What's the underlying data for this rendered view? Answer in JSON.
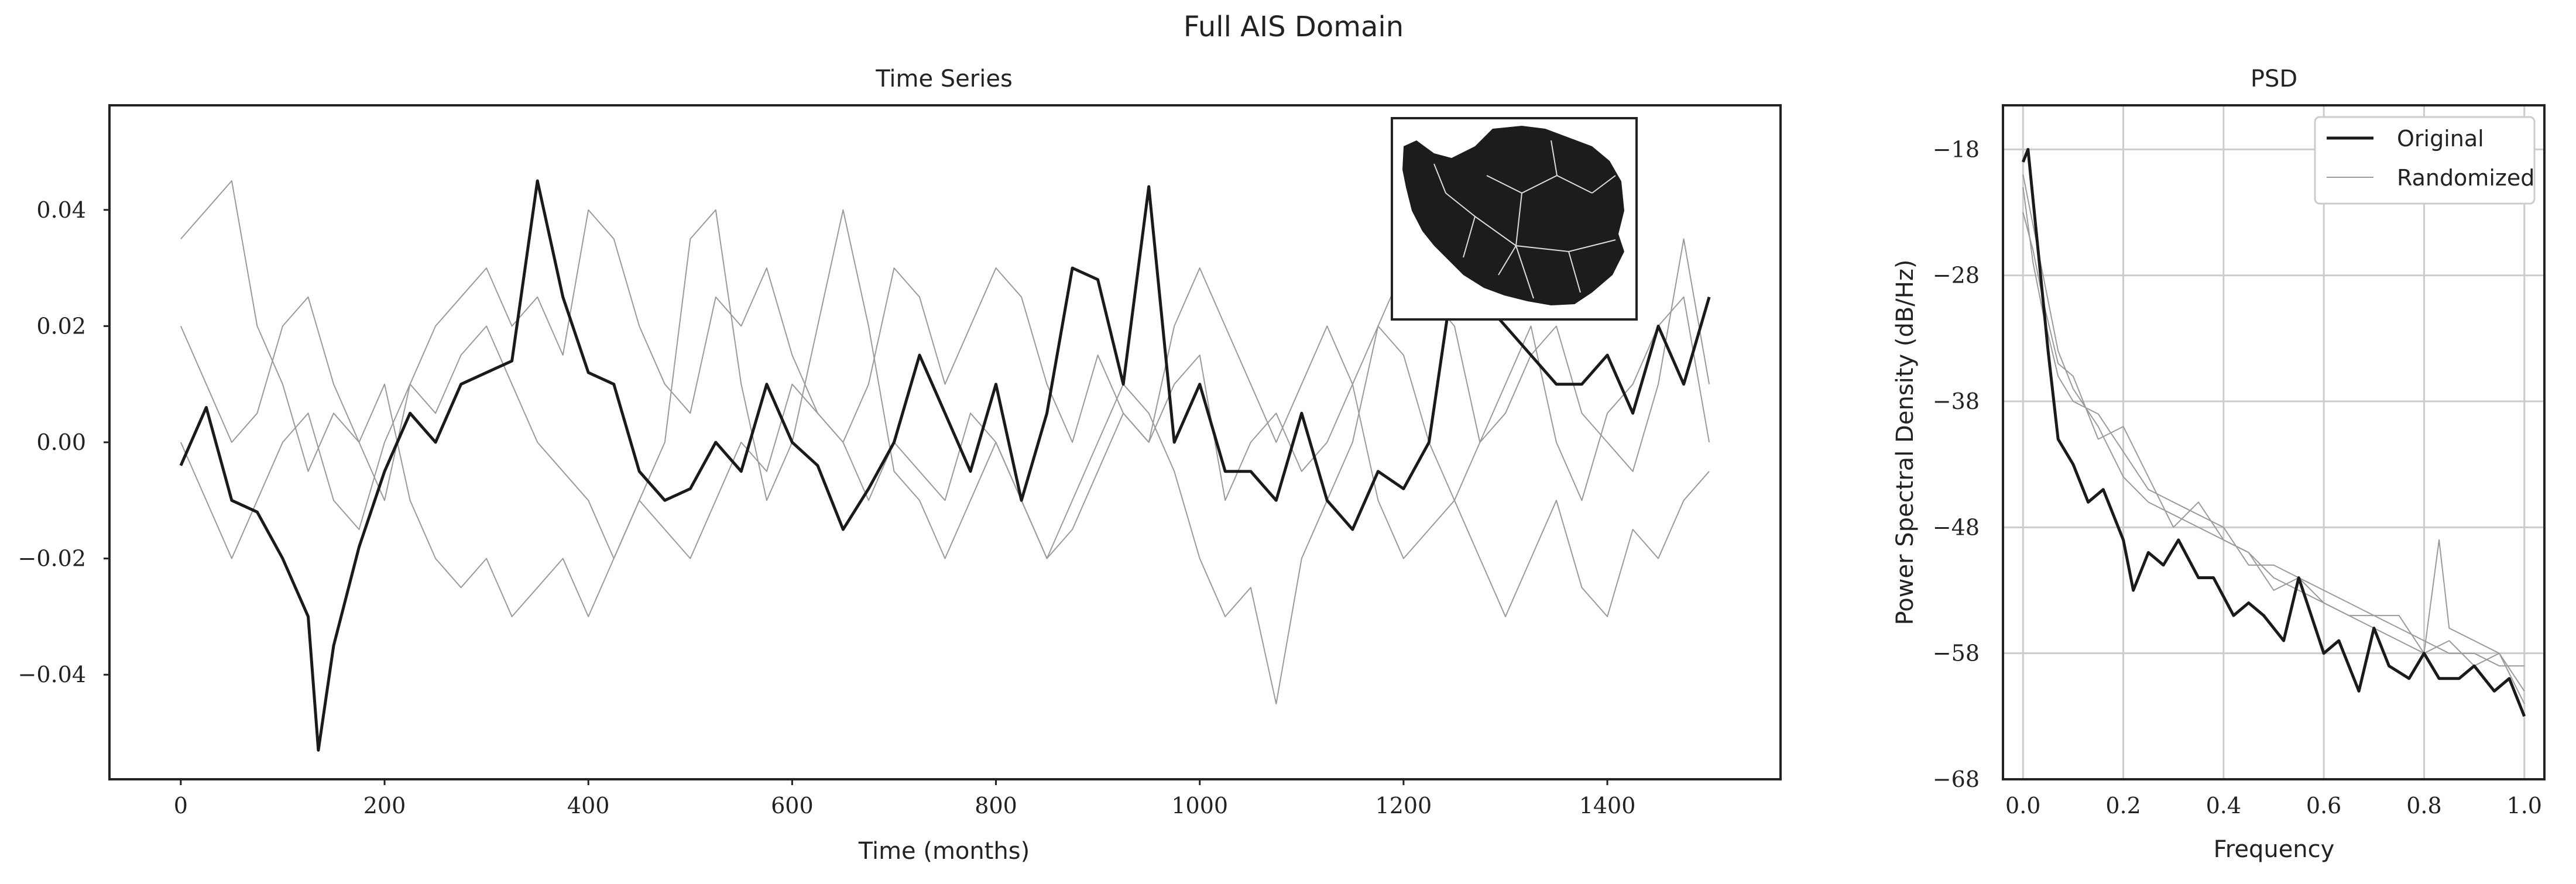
{
  "figure": {
    "suptitle": "Full AIS Domain"
  },
  "chart_data": [
    {
      "type": "line",
      "title": "Time Series",
      "xlabel": "Time (months)",
      "ylabel": "",
      "xlim": [
        -70,
        1570
      ],
      "ylim": [
        -0.058,
        0.058
      ],
      "x_ticks": [
        0,
        200,
        400,
        600,
        800,
        1000,
        1200,
        1400
      ],
      "x_tick_labels": [
        "0",
        "200",
        "400",
        "600",
        "800",
        "1000",
        "1200",
        "1400"
      ],
      "y_ticks": [
        -0.04,
        -0.02,
        0.0,
        0.02,
        0.04
      ],
      "y_tick_labels": [
        "−0.04",
        "−0.02",
        "0.00",
        "0.02",
        "0.04"
      ],
      "grid": false,
      "inset": "antarctica-map",
      "series": [
        {
          "style": "original",
          "x": [
            0,
            25,
            50,
            75,
            100,
            125,
            135,
            150,
            175,
            200,
            225,
            250,
            275,
            300,
            325,
            350,
            375,
            400,
            425,
            450,
            475,
            500,
            525,
            550,
            575,
            600,
            625,
            650,
            675,
            700,
            725,
            750,
            775,
            800,
            825,
            850,
            875,
            900,
            925,
            950,
            975,
            1000,
            1025,
            1050,
            1075,
            1100,
            1125,
            1150,
            1175,
            1200,
            1225,
            1250,
            1275,
            1300,
            1325,
            1350,
            1375,
            1400,
            1425,
            1450,
            1475,
            1500
          ],
          "y": [
            -0.004,
            0.006,
            -0.01,
            -0.012,
            -0.02,
            -0.03,
            -0.053,
            -0.035,
            -0.018,
            -0.005,
            0.005,
            0.0,
            0.01,
            0.012,
            0.014,
            0.045,
            0.025,
            0.012,
            0.01,
            -0.005,
            -0.01,
            -0.008,
            0.0,
            -0.005,
            0.01,
            0.0,
            -0.004,
            -0.015,
            -0.008,
            0.0,
            0.015,
            0.005,
            -0.005,
            0.01,
            -0.01,
            0.005,
            0.03,
            0.028,
            0.01,
            0.044,
            0.0,
            0.01,
            -0.005,
            -0.005,
            -0.01,
            0.005,
            -0.01,
            -0.015,
            -0.005,
            -0.008,
            0.0,
            0.03,
            0.025,
            0.02,
            0.015,
            0.01,
            0.01,
            0.015,
            0.005,
            0.02,
            0.01,
            0.025
          ]
        },
        {
          "style": "randomized",
          "x": [
            0,
            25,
            50,
            75,
            100,
            125,
            150,
            175,
            200,
            225,
            250,
            275,
            300,
            325,
            350,
            375,
            400,
            425,
            450,
            475,
            500,
            525,
            550,
            575,
            600,
            625,
            650,
            675,
            700,
            725,
            750,
            775,
            800,
            825,
            850,
            875,
            900,
            925,
            950,
            975,
            1000,
            1025,
            1050,
            1075,
            1100,
            1125,
            1150,
            1175,
            1200,
            1225,
            1250,
            1275,
            1300,
            1325,
            1350,
            1375,
            1400,
            1425,
            1450,
            1475,
            1500
          ],
          "y": [
            0.035,
            0.04,
            0.045,
            0.02,
            0.01,
            -0.005,
            0.005,
            0.0,
            0.01,
            -0.01,
            -0.02,
            -0.025,
            -0.02,
            -0.03,
            -0.025,
            -0.02,
            -0.03,
            -0.02,
            -0.01,
            -0.015,
            -0.02,
            -0.01,
            0.0,
            -0.005,
            0.01,
            0.005,
            0.0,
            -0.01,
            0.0,
            -0.005,
            -0.01,
            0.005,
            0.0,
            -0.01,
            -0.02,
            -0.01,
            0.0,
            0.01,
            0.005,
            -0.005,
            -0.02,
            -0.03,
            -0.025,
            -0.045,
            -0.02,
            -0.01,
            0.0,
            0.02,
            0.03,
            0.025,
            0.02,
            0.0,
            0.01,
            0.02,
            0.0,
            -0.01,
            0.005,
            0.01,
            0.02,
            0.025,
            0.0
          ]
        },
        {
          "style": "randomized",
          "x": [
            0,
            25,
            50,
            75,
            100,
            125,
            150,
            175,
            200,
            225,
            250,
            275,
            300,
            325,
            350,
            375,
            400,
            425,
            450,
            475,
            500,
            525,
            550,
            575,
            600,
            625,
            650,
            675,
            700,
            725,
            750,
            775,
            800,
            825,
            850,
            875,
            900,
            925,
            950,
            975,
            1000,
            1025,
            1050,
            1075,
            1100,
            1125,
            1150,
            1175,
            1200,
            1225,
            1250,
            1275,
            1300,
            1325,
            1350,
            1375,
            1400,
            1425,
            1450,
            1475,
            1500
          ],
          "y": [
            0.02,
            0.01,
            0.0,
            0.005,
            0.02,
            0.025,
            0.01,
            0.0,
            -0.01,
            0.01,
            0.02,
            0.025,
            0.03,
            0.02,
            0.025,
            0.015,
            0.04,
            0.035,
            0.02,
            0.01,
            0.005,
            0.025,
            0.02,
            0.03,
            0.015,
            0.005,
            0.0,
            0.01,
            0.03,
            0.025,
            0.01,
            0.02,
            0.03,
            0.025,
            0.01,
            0.0,
            0.015,
            0.005,
            0.0,
            0.01,
            0.015,
            -0.01,
            0.0,
            0.005,
            -0.005,
            0.0,
            0.01,
            0.02,
            0.015,
            0.0,
            -0.01,
            0.0,
            0.005,
            0.015,
            0.02,
            0.005,
            0.0,
            -0.005,
            0.01,
            0.035,
            0.01
          ]
        },
        {
          "style": "randomized",
          "x": [
            0,
            25,
            50,
            75,
            100,
            125,
            150,
            175,
            200,
            225,
            250,
            275,
            300,
            325,
            350,
            375,
            400,
            425,
            450,
            475,
            500,
            525,
            550,
            575,
            600,
            625,
            650,
            675,
            700,
            725,
            750,
            775,
            800,
            825,
            850,
            875,
            900,
            925,
            950,
            975,
            1000,
            1025,
            1050,
            1075,
            1100,
            1125,
            1150,
            1175,
            1200,
            1225,
            1250,
            1275,
            1300,
            1325,
            1350,
            1375,
            1400,
            1425,
            1450,
            1475,
            1500
          ],
          "y": [
            0.0,
            -0.01,
            -0.02,
            -0.01,
            0.0,
            0.005,
            -0.01,
            -0.015,
            0.0,
            0.01,
            0.005,
            0.015,
            0.02,
            0.01,
            0.0,
            -0.005,
            -0.01,
            -0.02,
            -0.01,
            0.0,
            0.035,
            0.04,
            0.01,
            -0.01,
            0.0,
            0.02,
            0.04,
            0.02,
            -0.005,
            -0.01,
            -0.02,
            -0.01,
            0.0,
            -0.01,
            -0.02,
            -0.015,
            -0.005,
            0.005,
            0.0,
            0.02,
            0.03,
            0.02,
            0.01,
            0.0,
            0.01,
            0.02,
            0.01,
            -0.01,
            -0.02,
            -0.015,
            -0.01,
            -0.02,
            -0.03,
            -0.02,
            -0.01,
            -0.025,
            -0.03,
            -0.015,
            -0.02,
            -0.01,
            -0.005
          ]
        }
      ]
    },
    {
      "type": "line",
      "title": "PSD",
      "xlabel": "Frequency",
      "ylabel": "Power Spectral Density (dB/Hz)",
      "xlim": [
        -0.04,
        1.04
      ],
      "ylim": [
        -68,
        -14.5
      ],
      "x_ticks": [
        0.0,
        0.2,
        0.4,
        0.6,
        0.8,
        1.0
      ],
      "x_tick_labels": [
        "0.0",
        "0.2",
        "0.4",
        "0.6",
        "0.8",
        "1.0"
      ],
      "y_ticks": [
        -68,
        -58,
        -48,
        -38,
        -28,
        -18
      ],
      "y_tick_labels": [
        "−68",
        "−58",
        "−48",
        "−38",
        "−28",
        "−18"
      ],
      "grid": true,
      "legend": {
        "placement": "top-right",
        "entries": [
          "Original",
          "Randomized"
        ]
      },
      "series": [
        {
          "name": "Original",
          "x": [
            0.0,
            0.01,
            0.02,
            0.03,
            0.05,
            0.07,
            0.1,
            0.13,
            0.16,
            0.2,
            0.22,
            0.25,
            0.28,
            0.31,
            0.35,
            0.38,
            0.42,
            0.45,
            0.48,
            0.52,
            0.55,
            0.6,
            0.63,
            0.67,
            0.7,
            0.73,
            0.77,
            0.8,
            0.83,
            0.87,
            0.9,
            0.94,
            0.97,
            1.0
          ],
          "y": [
            -19,
            -18,
            -22,
            -26,
            -34,
            -41,
            -43,
            -46,
            -45,
            -49,
            -53,
            -50,
            -51,
            -49,
            -52,
            -52,
            -55,
            -54,
            -55,
            -57,
            -52,
            -58,
            -57,
            -61,
            -56,
            -59,
            -60,
            -58,
            -60,
            -60,
            -59,
            -61,
            -60,
            -63
          ]
        },
        {
          "name": "Randomized",
          "x": [
            0.0,
            0.02,
            0.04,
            0.07,
            0.1,
            0.15,
            0.2,
            0.25,
            0.3,
            0.35,
            0.4,
            0.45,
            0.5,
            0.55,
            0.6,
            0.65,
            0.7,
            0.75,
            0.8,
            0.85,
            0.9,
            0.95,
            1.0
          ],
          "y": [
            -20,
            -24,
            -28,
            -34,
            -37,
            -40,
            -44,
            -46,
            -47,
            -48,
            -49,
            -50,
            -52,
            -53,
            -54,
            -55,
            -55,
            -56,
            -57,
            -58,
            -58,
            -59,
            -59
          ]
        },
        {
          "name": "Randomized",
          "x": [
            0.0,
            0.02,
            0.04,
            0.07,
            0.1,
            0.15,
            0.2,
            0.25,
            0.3,
            0.35,
            0.4,
            0.45,
            0.5,
            0.55,
            0.6,
            0.65,
            0.7,
            0.75,
            0.8,
            0.83,
            0.85,
            0.9,
            0.95,
            1.0
          ],
          "y": [
            -21,
            -27,
            -31,
            -36,
            -38,
            -39,
            -42,
            -45,
            -46,
            -47,
            -48,
            -51,
            -51,
            -52,
            -53,
            -54,
            -55,
            -55,
            -58,
            -49,
            -56,
            -57,
            -58,
            -62
          ]
        },
        {
          "name": "Randomized",
          "x": [
            0.0,
            0.02,
            0.04,
            0.07,
            0.1,
            0.15,
            0.2,
            0.25,
            0.3,
            0.35,
            0.4,
            0.45,
            0.5,
            0.55,
            0.6,
            0.65,
            0.7,
            0.75,
            0.8,
            0.85,
            0.9,
            0.95,
            1.0
          ],
          "y": [
            -23,
            -26,
            -30,
            -35,
            -36,
            -41,
            -40,
            -44,
            -48,
            -46,
            -49,
            -50,
            -53,
            -52,
            -54,
            -55,
            -56,
            -57,
            -58,
            -57,
            -59,
            -58,
            -61
          ]
        }
      ]
    }
  ]
}
